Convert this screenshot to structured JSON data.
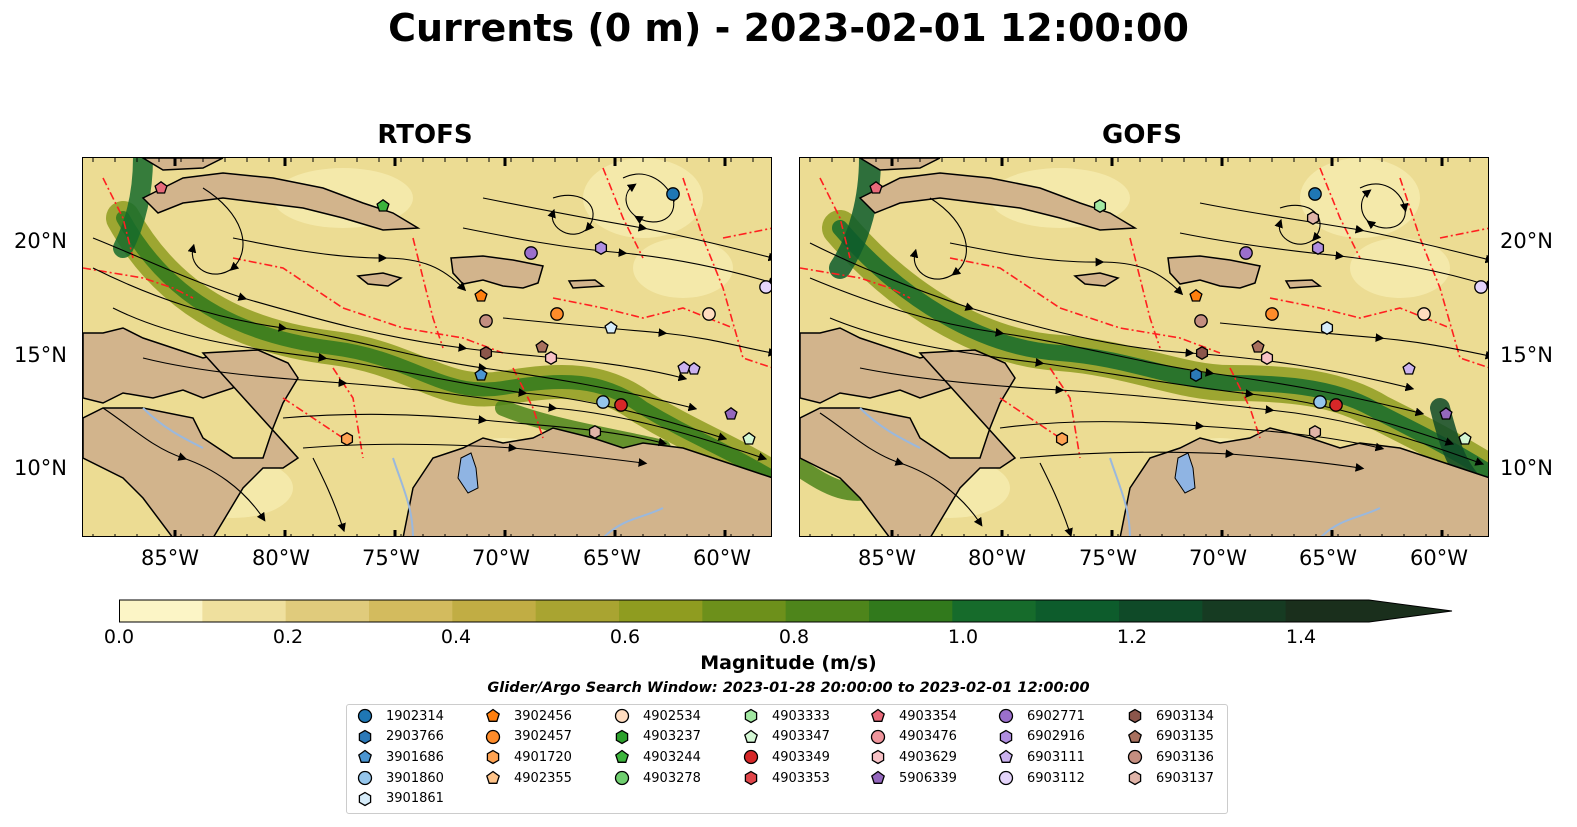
{
  "title": "Currents (0 m) - 2023-02-01 12:00:00",
  "panels": [
    {
      "name": "RTOFS"
    },
    {
      "name": "GOFS"
    }
  ],
  "axes": {
    "lon_ticks": [
      "85°W",
      "80°W",
      "75°W",
      "70°W",
      "65°W",
      "60°W"
    ],
    "lat_ticks": [
      "20°N",
      "15°N",
      "10°N"
    ]
  },
  "colorbar": {
    "label": "Magnitude (m/s)",
    "ticks": [
      "0.0",
      "0.2",
      "0.4",
      "0.6",
      "0.8",
      "1.0",
      "1.2",
      "1.4"
    ],
    "colors": [
      "#fcf5c6",
      "#efe09e",
      "#e0cb7c",
      "#d3bb5e",
      "#c1ad44",
      "#a9a431",
      "#8f9c20",
      "#6d901b",
      "#4e851b",
      "#31791c",
      "#166b2b",
      "#0d5c2c",
      "#0f4a28",
      "#163b22",
      "#1a2f1c"
    ]
  },
  "legend": {
    "title": "Glider/Argo Search Window: 2023-01-28 20:00:00 to 2023-02-01 12:00:00",
    "columns": [
      [
        {
          "id": "1902314",
          "shape": "circle",
          "color": "#1f77b4"
        },
        {
          "id": "2903766",
          "shape": "hexagon",
          "color": "#2b79b8"
        },
        {
          "id": "3901686",
          "shape": "pentagon",
          "color": "#4b95d1"
        },
        {
          "id": "3901860",
          "shape": "circle",
          "color": "#95c6ec"
        },
        {
          "id": "3901861",
          "shape": "hexagon",
          "color": "#d6ecfa"
        }
      ],
      [
        {
          "id": "3902456",
          "shape": "pentagon",
          "color": "#ff7f0e"
        },
        {
          "id": "3902457",
          "shape": "circle",
          "color": "#ff8c2a"
        },
        {
          "id": "4901720",
          "shape": "hexagon",
          "color": "#ffa352"
        },
        {
          "id": "4902355",
          "shape": "pentagon",
          "color": "#ffc48a"
        }
      ],
      [
        {
          "id": "4902534",
          "shape": "circle",
          "color": "#ffdcbf"
        },
        {
          "id": "4903237",
          "shape": "hexagon",
          "color": "#2ca02c"
        },
        {
          "id": "4903244",
          "shape": "pentagon",
          "color": "#3cb43c"
        },
        {
          "id": "4903278",
          "shape": "circle",
          "color": "#6fcf6f"
        }
      ],
      [
        {
          "id": "4903333",
          "shape": "hexagon",
          "color": "#a2e8a2"
        },
        {
          "id": "4903347",
          "shape": "pentagon",
          "color": "#d4f7d4"
        },
        {
          "id": "4903349",
          "shape": "circle",
          "color": "#d62728"
        },
        {
          "id": "4903353",
          "shape": "hexagon",
          "color": "#e0454a"
        }
      ],
      [
        {
          "id": "4903354",
          "shape": "pentagon",
          "color": "#e86a7a"
        },
        {
          "id": "4903476",
          "shape": "circle",
          "color": "#f0959c"
        },
        {
          "id": "4903629",
          "shape": "hexagon",
          "color": "#f8c2c6"
        },
        {
          "id": "5906339",
          "shape": "pentagon",
          "color": "#9467bd"
        }
      ],
      [
        {
          "id": "6902771",
          "shape": "circle",
          "color": "#9b6fcc"
        },
        {
          "id": "6902916",
          "shape": "hexagon",
          "color": "#b08ee0"
        },
        {
          "id": "6903111",
          "shape": "pentagon",
          "color": "#cbb2ef"
        },
        {
          "id": "6903112",
          "shape": "circle",
          "color": "#e4d4fa"
        }
      ],
      [
        {
          "id": "6903134",
          "shape": "hexagon",
          "color": "#8c564b"
        },
        {
          "id": "6903135",
          "shape": "pentagon",
          "color": "#a8705e"
        },
        {
          "id": "6903136",
          "shape": "circle",
          "color": "#c48e80"
        },
        {
          "id": "6903137",
          "shape": "hexagon",
          "color": "#e0b4a8"
        }
      ]
    ]
  }
}
